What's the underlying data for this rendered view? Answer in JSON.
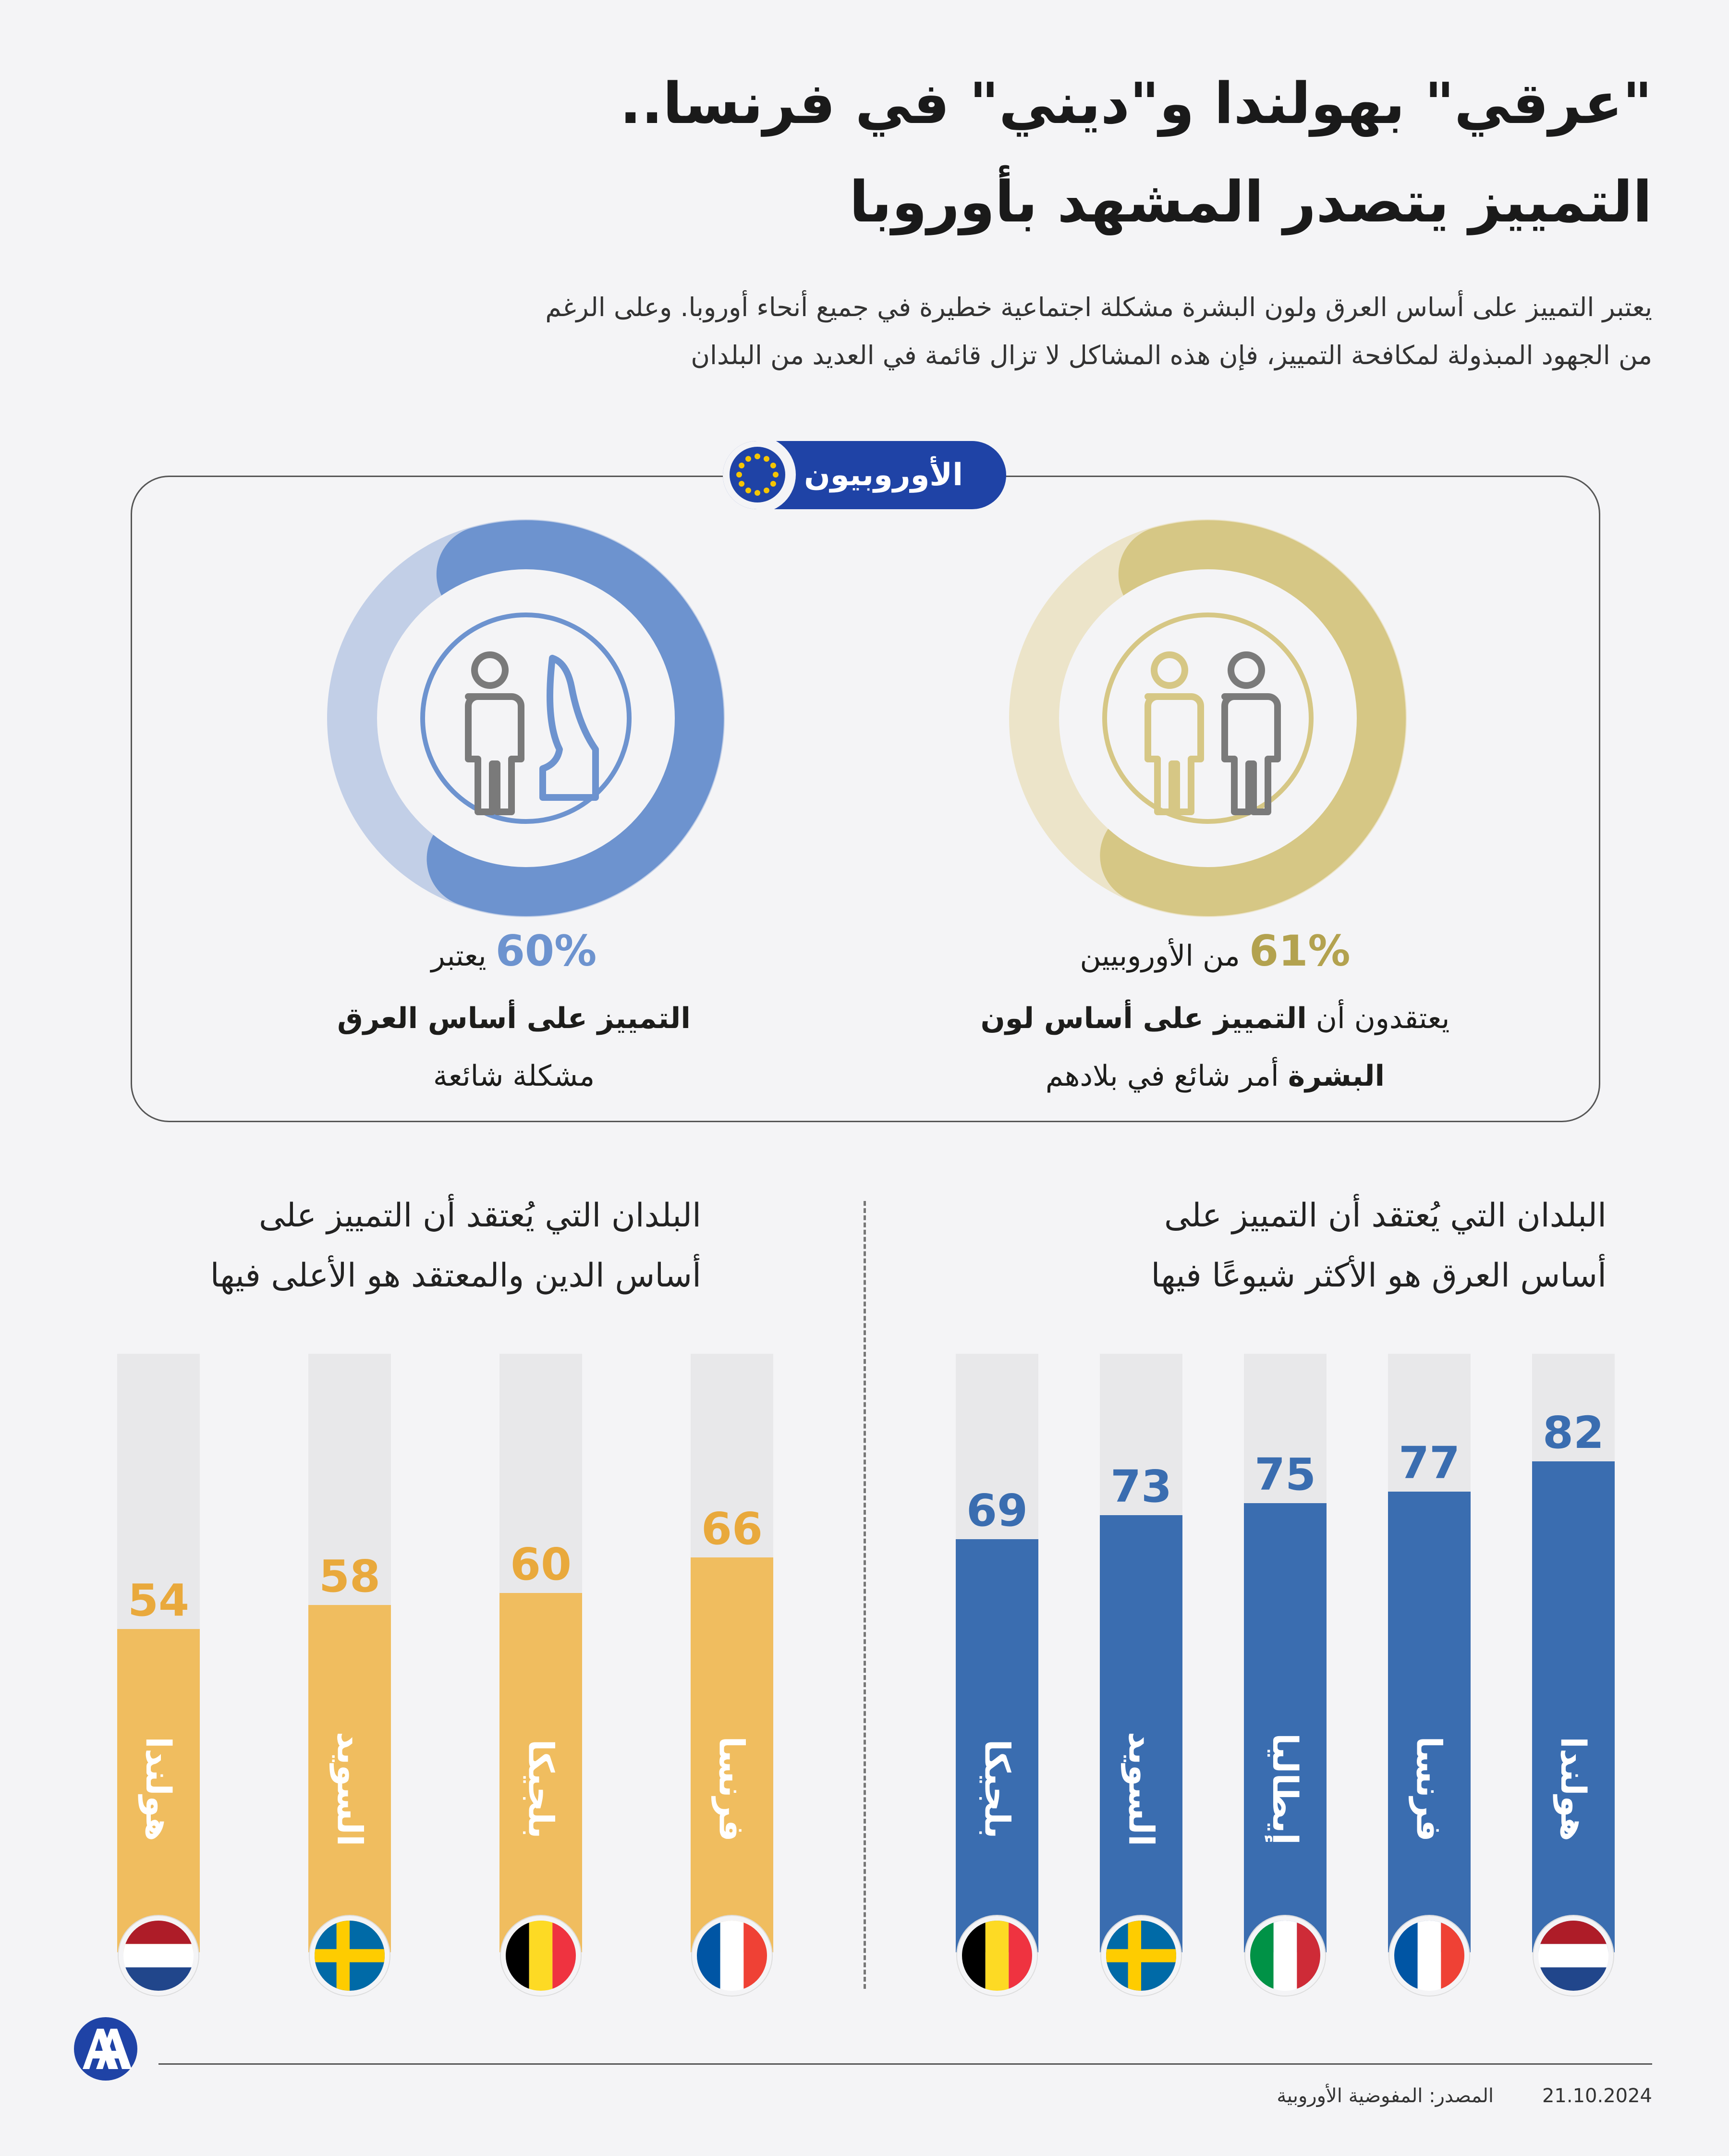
{
  "title": {
    "line1": "\"عرقي\" بهولندا و\"ديني\" في فرنسا..",
    "line2": "التمييز يتصدر المشهد بأوروبا"
  },
  "intro": {
    "line1": "يعتبر التمييز على أساس العرق ولون البشرة مشكلة اجتماعية خطيرة في جميع أنحاء أوروبا. وعلى الرغم",
    "line2": "من الجهود المبذولة لمكافحة التمييز، فإن هذه المشاكل لا تزال قائمة في العديد من البلدان"
  },
  "panel": {
    "badge": "الأوروبيون",
    "left": {
      "percent": "60%",
      "line1_rest": "يعتبر",
      "line2": "التمييز على أساس العرق",
      "line3": "مشكلة شائعة",
      "color": "#6d93cf",
      "icon": "religion-person-icon"
    },
    "right": {
      "percent": "61%",
      "line1_rest": "من الأوروبيين",
      "line2_plain": "يعتقدون أن ",
      "line2_bold": "التمييز على أساس لون",
      "line3_bold": "البشرة",
      "line3_plain": " أمر شائع في بلادهم",
      "color": "#d6c785",
      "icon": "two-people-icon"
    }
  },
  "chart_data": [
    {
      "type": "bar",
      "title": "البلدان التي يُعتقد أن التمييز على أساس الدين والمعتقد هو الأعلى فيها",
      "title_line1": "البلدان التي يُعتقد أن التمييز على",
      "title_line2": "أساس الدين والمعتقد هو الأعلى فيها",
      "categories": [
        "فرنسا",
        "بلجيكا",
        "السويد",
        "هولندا"
      ],
      "values": [
        66,
        60,
        58,
        54
      ],
      "flags": [
        "france",
        "belgium",
        "sweden",
        "netherlands"
      ],
      "color": "#f0bd5f",
      "ylim": [
        0,
        100
      ]
    },
    {
      "type": "bar",
      "title": "البلدان التي يُعتقد أن التمييز على أساس العرق هو الأكثر شيوعًا فيها",
      "title_line1": "البلدان التي يُعتقد أن التمييز على",
      "title_line2": "أساس العرق هو الأكثر شيوعًا فيها",
      "categories": [
        "هولندا",
        "فرنسا",
        "إيطاليا",
        "السويد",
        "بلجيكا"
      ],
      "values": [
        82,
        77,
        75,
        73,
        69
      ],
      "flags": [
        "netherlands",
        "france",
        "italy",
        "sweden",
        "belgium"
      ],
      "color": "#3a6db0",
      "ylim": [
        0,
        100
      ]
    }
  ],
  "footer": {
    "source": "المصدر: المفوضية الأوروبية",
    "date": "21.10.2024",
    "logo": "AA"
  },
  "colors": {
    "religion_bar": "#f0bd5f",
    "race_bar": "#3a6db0",
    "badge": "#1f43a6",
    "track": "#e8e8ea"
  }
}
